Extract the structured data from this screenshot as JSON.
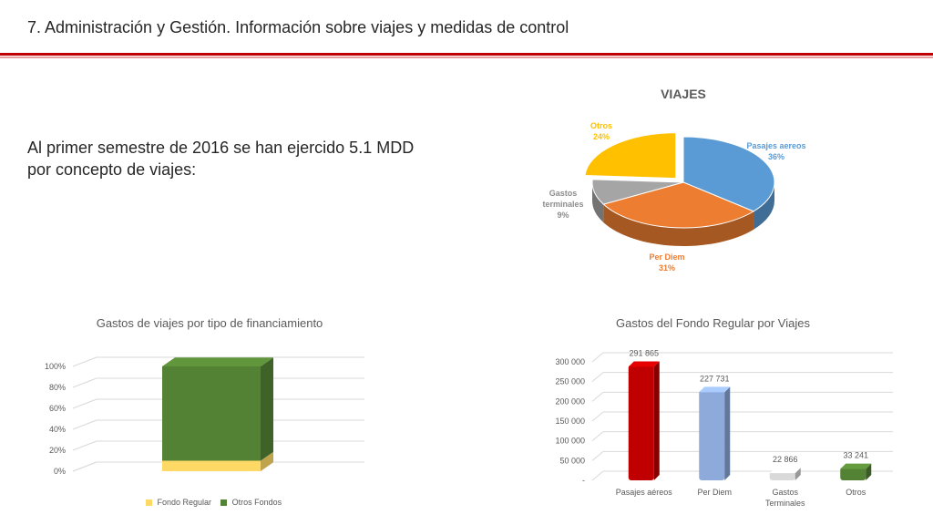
{
  "header": {
    "title": "7. Administración y Gestión. Información sobre viajes y medidas de control",
    "accent_color": "#c00000"
  },
  "intro": {
    "line1": "Al primer semestre de 2016 se han ejercido 5.1 MDD",
    "line2": "por concepto de viajes:"
  },
  "chart_data": [
    {
      "type": "pie",
      "title": "VIAJES",
      "slices": [
        {
          "label": "Pasajes aereos",
          "value": 36,
          "display": "36%",
          "color": "#5b9bd5"
        },
        {
          "label": "Per Diem",
          "value": 31,
          "display": "31%",
          "color": "#ed7d31"
        },
        {
          "label": "Gastos terminales",
          "value": 9,
          "display": "9%",
          "color": "#a5a5a5"
        },
        {
          "label": "Otros",
          "value": 24,
          "display": "24%",
          "color": "#ffc000"
        }
      ]
    },
    {
      "type": "bar",
      "stacked": true,
      "title": "Gastos de viajes por tipo de financiamiento",
      "categories": [
        ""
      ],
      "ylim": [
        0,
        100
      ],
      "yticks": [
        "0%",
        "20%",
        "40%",
        "60%",
        "80%",
        "100%"
      ],
      "series": [
        {
          "name": "Fondo Regular",
          "values": [
            10
          ],
          "color": "#ffd966"
        },
        {
          "name": "Otros Fondos",
          "values": [
            90
          ],
          "color": "#548235"
        }
      ],
      "legend": "bottom"
    },
    {
      "type": "bar",
      "title": "Gastos del Fondo Regular por Viajes",
      "categories": [
        "Pasajes aéreos",
        "Per Diem",
        "Gastos Terminales",
        "Otros"
      ],
      "values": [
        291865,
        227731,
        22866,
        33241
      ],
      "value_labels": [
        "291 865",
        "227 731",
        "22 866",
        "33 241"
      ],
      "colors": [
        "#c00000",
        "#8eaadb",
        "#d9d9d9",
        "#548235"
      ],
      "ylim": [
        0,
        300000
      ],
      "yticks": [
        "-",
        "50 000",
        "100 000",
        "150 000",
        "200 000",
        "250 000",
        "300 000"
      ]
    }
  ]
}
